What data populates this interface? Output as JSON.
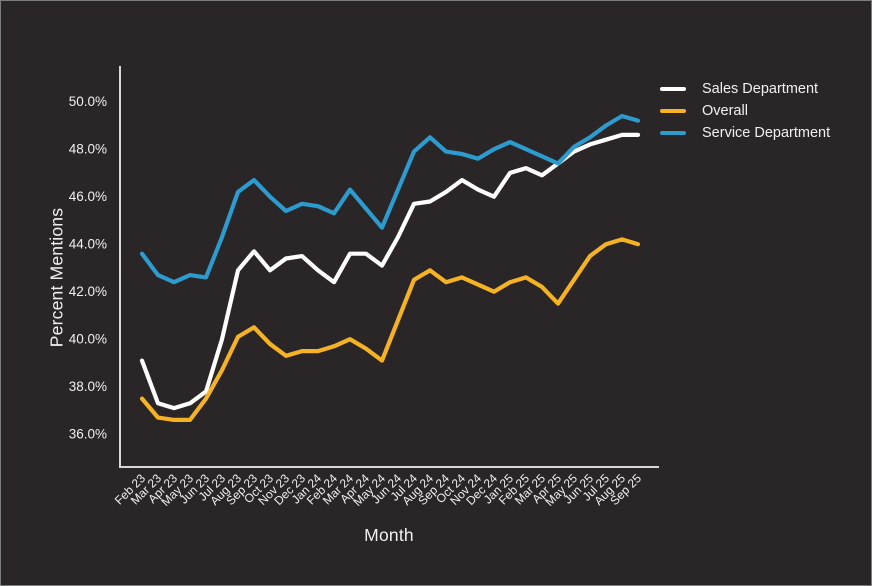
{
  "chart_data": {
    "type": "line",
    "title": "",
    "xlabel": "Month",
    "ylabel": "Percent Mentions",
    "grid": false,
    "legend_position": "top-right-outside",
    "y_axis": {
      "min": 36,
      "max": 50,
      "tick_values": [
        36,
        38,
        40,
        42,
        44,
        46,
        48,
        50
      ],
      "tick_labels": [
        "36.0%",
        "38.0%",
        "40.0%",
        "42.0%",
        "44.0%",
        "46.0%",
        "48.0%",
        "50.0%"
      ]
    },
    "categories": [
      "Feb 23",
      "Mar 23",
      "Apr 23",
      "May 23",
      "Jun 23",
      "Jul 23",
      "Aug 23",
      "Sep 23",
      "Oct 23",
      "Nov 23",
      "Dec 23",
      "Jan 24",
      "Feb 24",
      "Mar 24",
      "Apr 24",
      "May 24",
      "Jun 24",
      "Jul 24",
      "Aug 24",
      "Sep 24",
      "Oct 24",
      "Nov 24",
      "Dec 24",
      "Jan 25",
      "Feb 25",
      "Mar 25",
      "Apr 25",
      "May 25",
      "Jun 25",
      "Jul 25",
      "Aug 25",
      "Sep 25"
    ],
    "series": [
      {
        "name": "Sales Department",
        "color": "#ffffff",
        "values": [
          39.1,
          37.3,
          37.1,
          37.3,
          37.8,
          40.0,
          42.9,
          43.7,
          42.9,
          43.4,
          43.5,
          42.9,
          42.4,
          43.6,
          43.6,
          43.1,
          44.3,
          45.7,
          45.8,
          46.2,
          46.7,
          46.3,
          46.0,
          47.0,
          47.2,
          46.9,
          47.4,
          47.9,
          48.2,
          48.4,
          48.6,
          48.6
        ]
      },
      {
        "name": "Overall",
        "color": "#f5b324",
        "values": [
          37.5,
          36.7,
          36.6,
          36.6,
          37.5,
          38.7,
          40.1,
          40.5,
          39.8,
          39.3,
          39.5,
          39.5,
          39.7,
          40.0,
          39.6,
          39.1,
          40.8,
          42.5,
          42.9,
          42.4,
          42.6,
          42.3,
          42.0,
          42.4,
          42.6,
          42.2,
          41.5,
          42.5,
          43.5,
          44.0,
          44.2,
          44.0
        ]
      },
      {
        "name": "Service Department",
        "color": "#2d9bce",
        "values": [
          43.6,
          42.7,
          42.4,
          42.7,
          42.6,
          44.3,
          46.2,
          46.7,
          46.0,
          45.4,
          45.7,
          45.6,
          45.3,
          46.3,
          45.5,
          44.7,
          46.3,
          47.9,
          48.5,
          47.9,
          47.8,
          47.6,
          48.0,
          48.3,
          48.0,
          47.7,
          47.4,
          48.1,
          48.5,
          49.0,
          49.4,
          49.2
        ]
      }
    ]
  },
  "colors": {
    "background": "#2a2526",
    "border": "#7d7d7d",
    "axis_line": "#d9d7d6",
    "tick_text": "#f2f0ef",
    "sales": "#ffffff",
    "overall": "#f5b324",
    "service": "#2d9bce"
  }
}
